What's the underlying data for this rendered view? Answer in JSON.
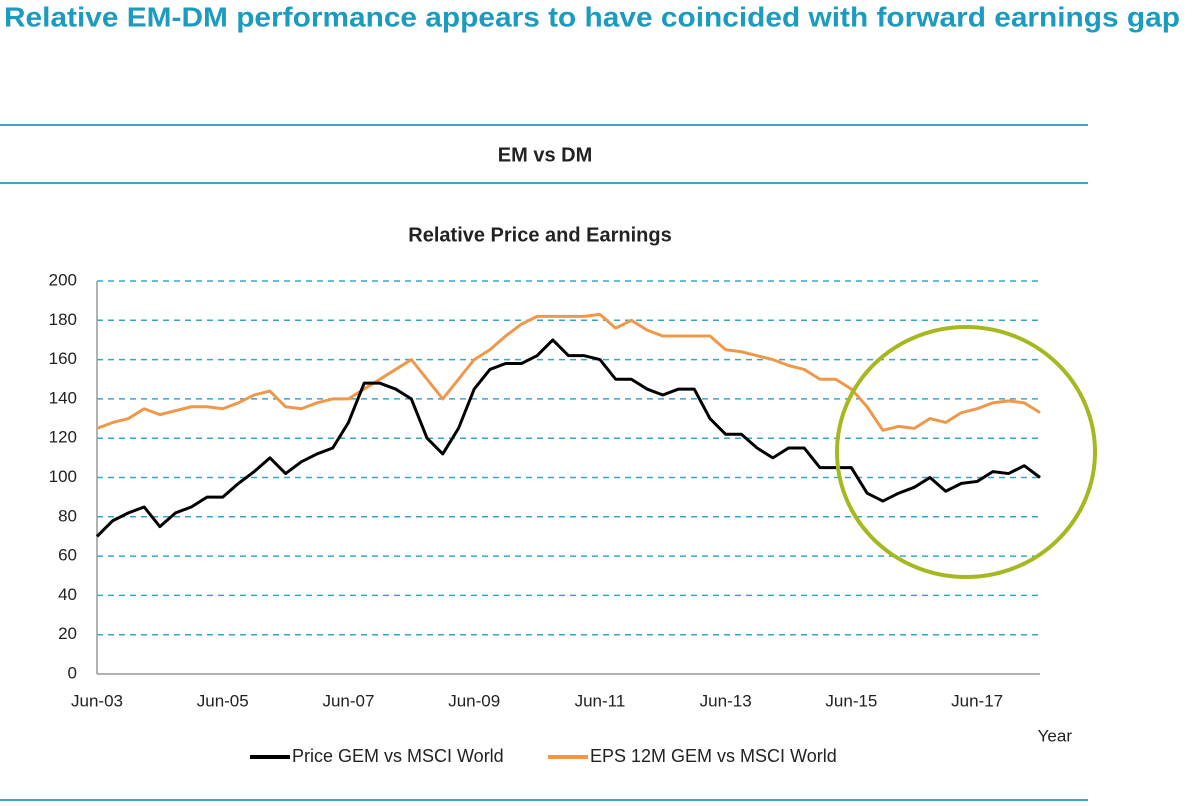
{
  "header": {
    "title": "Relative EM-DM performance appears to have coincided with forward earnings gap"
  },
  "section": "EM vs DM",
  "chart_data": {
    "type": "line",
    "title": "Relative Price and Earnings",
    "x_label": "Year",
    "categories": [
      "Jun-03",
      null,
      null,
      null,
      null,
      null,
      null,
      null,
      "Jun-05",
      null,
      null,
      null,
      null,
      null,
      null,
      null,
      "Jun-07",
      null,
      null,
      null,
      null,
      null,
      null,
      null,
      "Jun-09",
      null,
      null,
      null,
      null,
      null,
      null,
      null,
      "Jun-11",
      null,
      null,
      null,
      null,
      null,
      null,
      null,
      "Jun-13",
      null,
      null,
      null,
      null,
      null,
      null,
      null,
      "Jun-15",
      null,
      null,
      null,
      null,
      null,
      null,
      null,
      "Jun-17",
      null,
      null,
      null,
      null
    ],
    "series": [
      {
        "name": "Price GEM vs MSCI World",
        "color": "#000000",
        "values": [
          70,
          78,
          82,
          85,
          75,
          82,
          85,
          90,
          90,
          97,
          103,
          110,
          102,
          108,
          112,
          115,
          128,
          148,
          148,
          145,
          140,
          120,
          112,
          125,
          145,
          155,
          158,
          158,
          162,
          170,
          162,
          162,
          160,
          150,
          150,
          145,
          142,
          145,
          145,
          130,
          122,
          122,
          115,
          110,
          115,
          115,
          105,
          105,
          105,
          92,
          88,
          92,
          95,
          100,
          93,
          97,
          98,
          103,
          102,
          106,
          100
        ]
      },
      {
        "name": "EPS 12M GEM vs MSCI World",
        "color": "#f0984a",
        "values": [
          125,
          128,
          130,
          135,
          132,
          134,
          136,
          136,
          135,
          138,
          142,
          144,
          136,
          135,
          138,
          140,
          140,
          145,
          150,
          155,
          160,
          150,
          140,
          150,
          160,
          165,
          172,
          178,
          182,
          182,
          182,
          182,
          183,
          176,
          180,
          175,
          172,
          172,
          172,
          172,
          165,
          164,
          162,
          160,
          157,
          155,
          150,
          150,
          145,
          136,
          124,
          126,
          125,
          130,
          128,
          133,
          135,
          138,
          139,
          138,
          133
        ]
      }
    ],
    "ylim": [
      0,
      200
    ],
    "yticks": [
      0,
      20,
      40,
      60,
      80,
      100,
      120,
      140,
      160,
      180,
      200
    ],
    "grid": true,
    "grid_color": "#3aa6c5",
    "legend": "bottom"
  }
}
